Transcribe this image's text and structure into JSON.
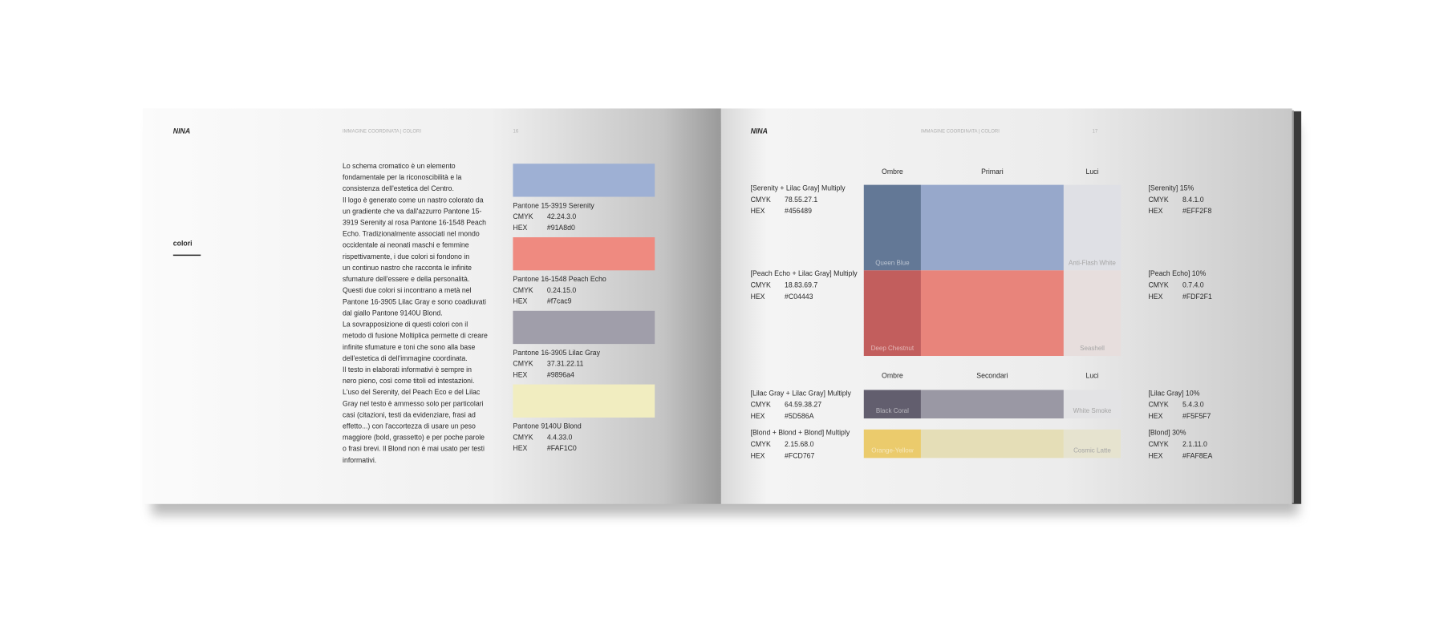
{
  "labels": {
    "cmyk": "CMYK",
    "hex": "HEX"
  },
  "left_page": {
    "logo": "NINA",
    "header": "IMMAGINE COORDINATA | COLORI",
    "page_number": "16",
    "title": "colori",
    "body": [
      "Lo schema cromatico è un elemento",
      "fondamentale per la riconoscibilità e la",
      "consistenza dell'estetica del Centro.",
      "Il logo è generato come un nastro colorato da",
      "un gradiente che va dall'azzurro Pantone 15-",
      "3919 Serenity al rosa Pantone 16-1548 Peach",
      "Echo. Tradizionalmente associati nel mondo",
      "occidentale ai neonati maschi e femmine",
      "rispettivamente, i due colori si fondono in",
      "un continuo nastro che racconta le infinite",
      "sfumature dell'essere e della personalità.",
      "Questi due colori si incontrano a metà nel",
      "Pantone 16-3905 Lilac Gray e sono coadiuvati",
      "dal giallo Pantone 9140U Blond.",
      "La sovrapposizione di questi colori con il",
      "metodo di fusione Moltiplica permette di creare",
      "infinite sfumature e toni che sono alla base",
      "dell'estetica di dell'immagine coordinata.",
      "Il testo in elaborati informativi è sempre in",
      "nero pieno, così come titoli ed intestazioni.",
      "L'uso del Serenity, del Peach Eco e del Lilac",
      "Gray nel testo è ammesso solo per particolari",
      "casi (citazioni, testi da evidenziare, frasi ad",
      "effetto...) con l'accortezza di usare un peso",
      "maggiore (bold, grassetto) e per poche parole",
      "o frasi brevi. Il Blond non è mai usato per testi",
      "informativi."
    ],
    "swatches": [
      {
        "name": "Pantone 15-3919 Serenity",
        "cmyk": "42.24.3.0",
        "hex": "#91A8d0",
        "color": "#9eb0d4"
      },
      {
        "name": "Pantone 16-1548 Peach Echo",
        "cmyk": "0.24.15.0",
        "hex": "#f7cac9",
        "color": "#ef8a80"
      },
      {
        "name": "Pantone 16-3905 Lilac Gray",
        "cmyk": "37.31.22.11",
        "hex": "#9896a4",
        "color": "#a09eaa"
      },
      {
        "name": "Pantone 9140U Blond",
        "cmyk": "4.4.33.0",
        "hex": "#FAF1C0",
        "color": "#f1edc0"
      }
    ]
  },
  "right_page": {
    "logo": "NINA",
    "header": "IMMAGINE COORDINATA | COLORI",
    "page_number": "17",
    "groups": [
      {
        "headers": [
          "Ombre",
          "Primari",
          "Luci"
        ],
        "rows": [
          {
            "mix": {
              "title": "[Serenity + Lilac Gray] Multiply",
              "cmyk": "78.55.27.1",
              "hex": "#456489"
            },
            "shade": {
              "name": "Queen Blue",
              "color": "#637896"
            },
            "main_color": "#97a8cb",
            "light": {
              "name": "Anti-Flash White",
              "color": "#dfe0e5"
            },
            "tint": {
              "title": "[Serenity] 15%",
              "cmyk": "8.4.1.0",
              "hex": "#EFF2F8"
            }
          },
          {
            "mix": {
              "title": "[Peach Echo + Lilac Gray] Multiply",
              "cmyk": "18.83.69.7",
              "hex": "#C04443"
            },
            "shade": {
              "name": "Deep Chestnut",
              "color": "#c25e5d"
            },
            "main_color": "#e8847b",
            "light": {
              "name": "Seashell",
              "color": "#e7dedd"
            },
            "tint": {
              "title": "[Peach Echo] 10%",
              "cmyk": "0.7.4.0",
              "hex": "#FDF2F1"
            }
          }
        ]
      },
      {
        "headers": [
          "Ombre",
          "Secondari",
          "Luci"
        ],
        "rows": [
          {
            "mix": {
              "title": "[Lilac Gray + Lilac Gray] Multiply",
              "cmyk": "64.59.38.27",
              "hex": "#5D586A"
            },
            "shade": {
              "name": "Black Coral",
              "color": "#625e6e"
            },
            "main_color": "#9a98a4",
            "light": {
              "name": "White Smoke",
              "color": "#e3e3e5"
            },
            "tint": {
              "title": "[Lilac Gray] 10%",
              "cmyk": "5.4.3.0",
              "hex": "#F5F5F7"
            }
          },
          {
            "mix": {
              "title": "[Blond + Blond + Blond] Multiply",
              "cmyk": "2.15.68.0",
              "hex": "#FCD767"
            },
            "shade": {
              "name": "Orange-Yellow",
              "color": "#ebcb6c"
            },
            "main_color": "#e5deb7",
            "light": {
              "name": "Cosmic Latte",
              "color": "#e6e3cf"
            },
            "tint": {
              "title": "[Blond] 30%",
              "cmyk": "2.1.11.0",
              "hex": "#FAF8EA"
            }
          }
        ]
      }
    ]
  }
}
